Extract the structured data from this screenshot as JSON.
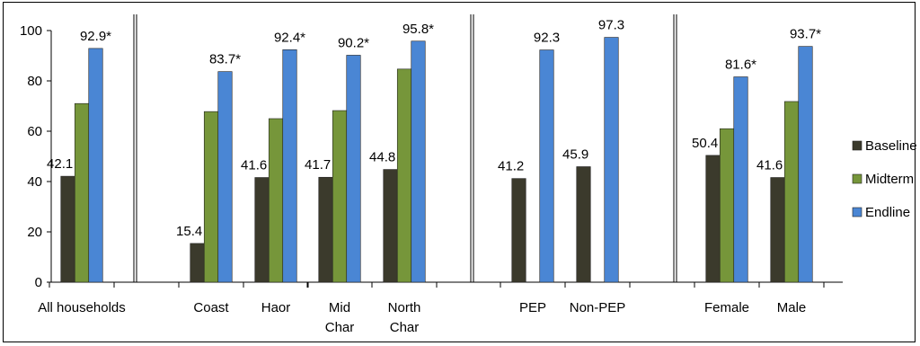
{
  "chart_data": {
    "type": "bar",
    "title": "",
    "xlabel": "",
    "ylabel": "",
    "ylim": [
      0,
      100
    ],
    "yticks": [
      "0",
      "20",
      "40",
      "60",
      "80",
      "100"
    ],
    "legend_position": "right",
    "grid": false,
    "categories": [
      {
        "label": [
          "All households"
        ],
        "group": 0,
        "values": [
          42.1,
          71.0,
          92.9
        ],
        "labels": [
          "42.1",
          null,
          "92.9*"
        ]
      },
      {
        "label": [
          "Coast"
        ],
        "group": 1,
        "values": [
          15.4,
          67.8,
          83.7
        ],
        "labels": [
          "15.4",
          null,
          "83.7*"
        ]
      },
      {
        "label": [
          "Haor"
        ],
        "group": 1,
        "values": [
          41.6,
          65.0,
          92.4
        ],
        "labels": [
          "41.6",
          null,
          "92.4*"
        ]
      },
      {
        "label": [
          "Mid",
          "Char"
        ],
        "group": 1,
        "values": [
          41.7,
          68.2,
          90.2
        ],
        "labels": [
          "41.7",
          null,
          "90.2*"
        ]
      },
      {
        "label": [
          "North",
          "Char"
        ],
        "group": 1,
        "values": [
          44.8,
          84.7,
          95.8
        ],
        "labels": [
          "44.8",
          null,
          "95.8*"
        ]
      },
      {
        "label": [
          "PEP"
        ],
        "group": 2,
        "values": [
          41.2,
          null,
          92.3
        ],
        "labels": [
          "41.2",
          null,
          "92.3"
        ]
      },
      {
        "label": [
          "Non-PEP"
        ],
        "group": 2,
        "values": [
          45.9,
          null,
          97.3
        ],
        "labels": [
          "45.9",
          null,
          "97.3"
        ]
      },
      {
        "label": [
          "Female"
        ],
        "group": 3,
        "values": [
          50.4,
          61.0,
          81.6
        ],
        "labels": [
          "50.4",
          null,
          "81.6*"
        ]
      },
      {
        "label": [
          "Male"
        ],
        "group": 3,
        "values": [
          41.6,
          71.8,
          93.7
        ],
        "labels": [
          "41.6",
          null,
          "93.7*"
        ]
      }
    ],
    "series": [
      {
        "name": "Baseline",
        "color": "#3b3a2c"
      },
      {
        "name": "Midterm",
        "color": "#76963a"
      },
      {
        "name": "Endline",
        "color": "#4a86d4"
      }
    ]
  }
}
